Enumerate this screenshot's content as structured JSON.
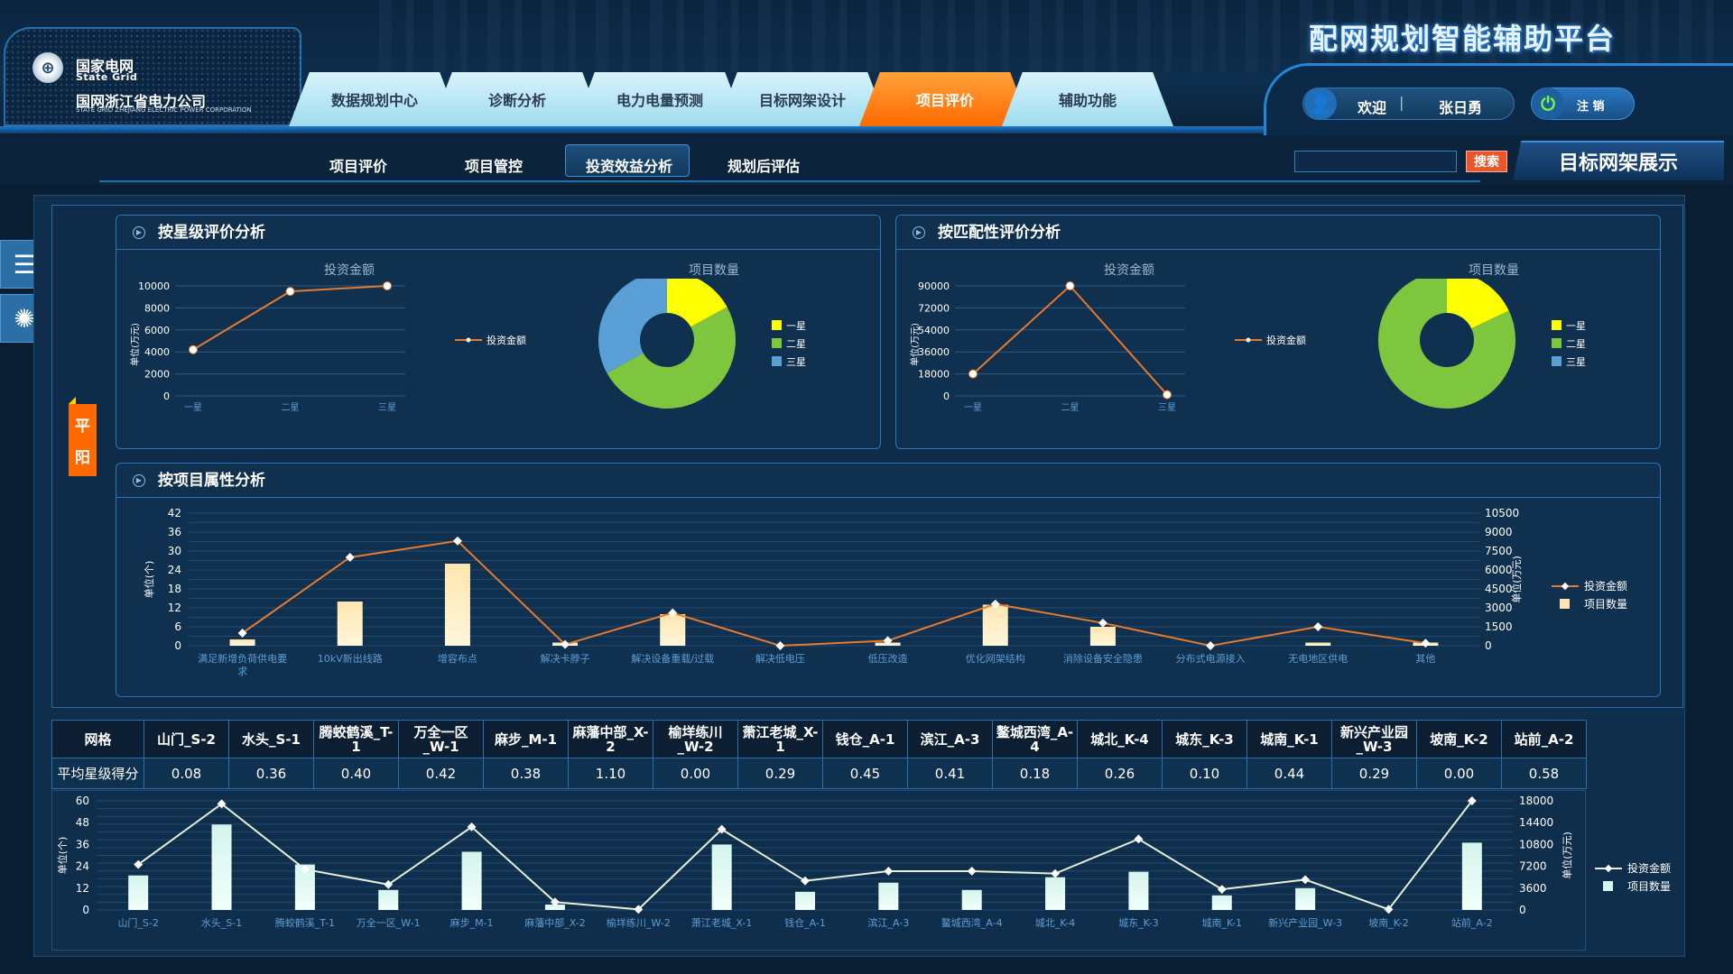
{
  "brand": {
    "cn_line1": "国家电网",
    "en_line1": "State Grid",
    "cn_line2": "国网浙江省电力公司",
    "en_line2": "STATE GRID ZHEJIANG ELECTRIC POWER CORPORATION",
    "logo_glyph": "⊕"
  },
  "platform_title": "配网规划智能辅助平台",
  "nav": {
    "tabs": [
      "数据规划中心",
      "诊断分析",
      "电力电量预测",
      "目标网架设计",
      "项目评价",
      "辅助功能"
    ],
    "active": "项目评价"
  },
  "user": {
    "welcome": "欢迎",
    "separator": "|",
    "name": "张日勇",
    "logout": "注 销",
    "user_icon": "👤",
    "power_icon": "⏻"
  },
  "subnav": {
    "tabs": [
      "项目评价",
      "项目管控",
      "投资效益分析",
      "规划后评估"
    ],
    "active": "投资效益分析"
  },
  "search": {
    "value": "",
    "placeholder": "",
    "button": "搜索"
  },
  "target_button": "目标网架展示",
  "side": {
    "menu_icon": "☰",
    "brain_icon": "✺"
  },
  "region": {
    "line1": "平",
    "line2": "阳"
  },
  "colors": {
    "accent": "#ff6a00",
    "line": "#e87a2c",
    "yellow": "#ffff00",
    "green": "#7dc63d",
    "blue": "#5a9fd6",
    "cream": "#ffe6b0",
    "mint": "#d4f5ec"
  },
  "panels": {
    "star": {
      "title": "按星级评价分析",
      "left_title": "投资金额",
      "right_title": "项目数量"
    },
    "match": {
      "title": "按匹配性评价分析",
      "left_title": "投资金额",
      "right_title": "项目数量"
    },
    "attr": {
      "title": "按项目属性分析"
    }
  },
  "chart_data": [
    {
      "type": "line",
      "title": "投资金额",
      "categories": [
        "一星",
        "二星",
        "三星"
      ],
      "series": [
        {
          "name": "投资金额",
          "values": [
            4200,
            9500,
            10000
          ]
        }
      ],
      "ylabel": "单位(万元)",
      "ylim": [
        0,
        10000
      ],
      "yticks": [
        0,
        2000,
        4000,
        6000,
        8000,
        10000
      ],
      "legend": "right"
    },
    {
      "type": "pie",
      "title": "项目数量",
      "labels": [
        "一星",
        "二星",
        "三星"
      ],
      "values": [
        17,
        50,
        33
      ],
      "colors": [
        "#ffff00",
        "#7dc63d",
        "#5a9fd6"
      ],
      "legend": "right"
    },
    {
      "type": "line",
      "title": "投资金额",
      "categories": [
        "一星",
        "二星",
        "三星"
      ],
      "series": [
        {
          "name": "投资金额",
          "values": [
            18000,
            90000,
            1000
          ]
        }
      ],
      "ylabel": "单位(万元)",
      "ylim": [
        0,
        90000
      ],
      "yticks": [
        0,
        18000,
        36000,
        54000,
        72000,
        90000
      ],
      "legend": "right"
    },
    {
      "type": "pie",
      "title": "项目数量",
      "labels": [
        "一星",
        "二星",
        "三星"
      ],
      "values": [
        18,
        82,
        0
      ],
      "colors": [
        "#ffff00",
        "#7dc63d",
        "#5a9fd6"
      ],
      "legend": "right"
    },
    {
      "type": "bar",
      "categories": [
        "满足新增负荷供电要求",
        "10kV新出线路",
        "增容布点",
        "解决卡脖子",
        "解决设备重载/过载",
        "解决低电压",
        "低压改造",
        "优化网架结构",
        "消除设备安全隐患",
        "分布式电源接入",
        "无电地区供电",
        "其他"
      ],
      "series": [
        {
          "name": "投资金额",
          "type": "line",
          "axis": "right",
          "values": [
            1000,
            7000,
            8300,
            100,
            2600,
            0,
            400,
            3300,
            1800,
            0,
            1500,
            200
          ]
        },
        {
          "name": "项目数量",
          "type": "bar",
          "axis": "left",
          "values": [
            2,
            14,
            26,
            1,
            10,
            0,
            1,
            13,
            6,
            0,
            1,
            1
          ]
        }
      ],
      "ylabel": "单位(个)",
      "y2label": "单位(万元)",
      "ylim": [
        0,
        42
      ],
      "y2lim": [
        0,
        10500
      ],
      "yticks": [
        0,
        6,
        12,
        18,
        24,
        30,
        36,
        42
      ],
      "y2ticks": [
        0,
        1500,
        3000,
        4500,
        6000,
        7500,
        9000,
        10500
      ],
      "legend": "right"
    },
    {
      "type": "bar",
      "categories": [
        "山门_S-2",
        "水头_S-1",
        "腾蛟鹤溪_T-1",
        "万全一区_W-1",
        "麻步_M-1",
        "麻藩中部_X-2",
        "榆垟练川_W-2",
        "萧江老城_X-1",
        "钱仓_A-1",
        "滨江_A-3",
        "鳌城西湾_A-4",
        "城北_K-4",
        "城东_K-3",
        "城南_K-1",
        "新兴产业园_W-3",
        "坡南_K-2",
        "站前_A-2"
      ],
      "series": [
        {
          "name": "投资金额",
          "type": "line",
          "axis": "right",
          "values": [
            7500,
            17500,
            6700,
            4200,
            13700,
            1300,
            100,
            13300,
            4800,
            6400,
            6400,
            6000,
            11700,
            3400,
            5000,
            100,
            18000
          ]
        },
        {
          "name": "项目数量",
          "type": "bar",
          "axis": "left",
          "values": [
            19,
            47,
            25,
            11,
            32,
            3,
            0,
            36,
            10,
            15,
            11,
            18,
            21,
            8,
            12,
            0,
            37
          ]
        }
      ],
      "ylabel": "单位(个)",
      "y2label": "单位(万元)",
      "ylim": [
        0,
        60
      ],
      "y2lim": [
        0,
        18000
      ],
      "yticks": [
        0,
        12,
        24,
        36,
        48,
        60
      ],
      "y2ticks": [
        0,
        3600,
        7200,
        10800,
        14400,
        18000
      ],
      "legend": "right"
    }
  ],
  "table": {
    "header_label": "网格",
    "row_label": "平均星级得分",
    "columns": [
      "山门_S-2",
      "水头_S-1",
      "腾蛟鹤溪_T-1",
      "万全一区_W-1",
      "麻步_M-1",
      "麻藩中部_X-2",
      "榆垟练川_W-2",
      "萧江老城_X-1",
      "钱仓_A-1",
      "滨江_A-3",
      "鳌城西湾_A-4",
      "城北_K-4",
      "城东_K-3",
      "城南_K-1",
      "新兴产业园_W-3",
      "坡南_K-2",
      "站前_A-2"
    ],
    "values": [
      "0.08",
      "0.36",
      "0.40",
      "0.42",
      "0.38",
      "1.10",
      "0.00",
      "0.29",
      "0.45",
      "0.41",
      "0.18",
      "0.26",
      "0.10",
      "0.44",
      "0.29",
      "0.00",
      "0.58"
    ]
  }
}
